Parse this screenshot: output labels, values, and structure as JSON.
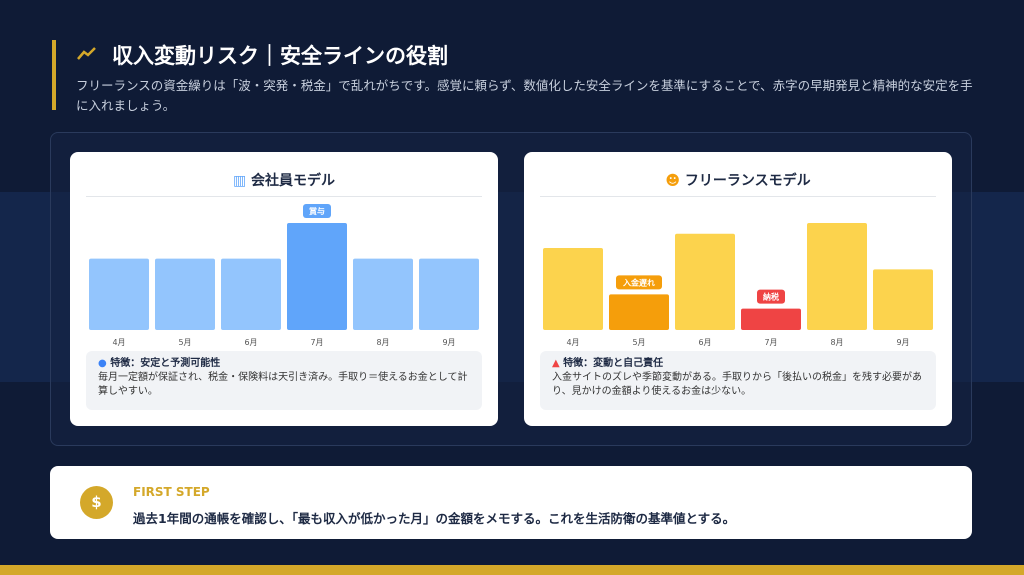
{
  "header": {
    "title": "収入変動リスク｜安全ラインの役割",
    "subtitle": "フリーランスの資金繰りは「波・突発・税金」で乱れがちです。感覚に頼らず、数値化した安全ラインを基準にすることで、赤字の早期発見と精神的な安定を手に入れましょう。"
  },
  "chart_data": [
    {
      "type": "bar",
      "title": "会社員モデル",
      "categories": [
        "4月",
        "5月",
        "6月",
        "7月",
        "8月",
        "9月"
      ],
      "values": [
        100,
        100,
        100,
        150,
        100,
        100
      ],
      "colors": [
        "#93c5fd",
        "#93c5fd",
        "#93c5fd",
        "#60a5fa",
        "#93c5fd",
        "#93c5fd"
      ],
      "bar_labels": [
        null,
        null,
        null,
        "賞与",
        null,
        null
      ],
      "note_title": "特徴：安定と予測可能性",
      "note_text": "毎月一定額が保証され、税金・保険料は天引き済み。手取り＝使えるお金として計算しやすい。"
    },
    {
      "type": "bar",
      "title": "フリーランスモデル",
      "categories": [
        "4月",
        "5月",
        "6月",
        "7月",
        "8月",
        "9月"
      ],
      "values": [
        115,
        50,
        135,
        30,
        150,
        85
      ],
      "colors": [
        "#fcd34d",
        "#f59e0b",
        "#fcd34d",
        "#ef4444",
        "#fcd34d",
        "#fcd34d"
      ],
      "bar_labels": [
        null,
        "入金遅れ",
        null,
        "納税",
        null,
        null
      ],
      "note_title": "特徴：変動と自己責任",
      "note_text": "入金サイトのズレや季節変動がある。手取りから「後払いの税金」を残す必要があり、見かけの金額より使えるお金は少ない。"
    }
  ],
  "first_step": {
    "label": "FIRST STEP",
    "text": "過去1年間の通帳を確認し、「最も収入が低かった月」の金額をメモする。これを生活防衛の基準値とする。"
  }
}
